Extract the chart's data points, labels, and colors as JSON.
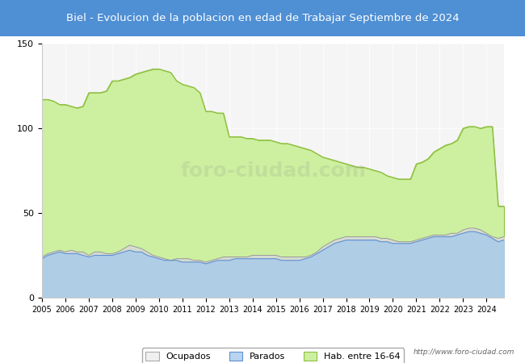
{
  "title": "Biel - Evolucion de la poblacion en edad de Trabajar Septiembre de 2024",
  "title_bg_color": "#4f8fd4",
  "title_text_color": "white",
  "xlim": [
    2005,
    2024.75
  ],
  "ylim": [
    0,
    150
  ],
  "yticks": [
    0,
    50,
    100,
    150
  ],
  "xtick_labels": [
    "2005",
    "2006",
    "2007",
    "2008",
    "2009",
    "2010",
    "2011",
    "2012",
    "2013",
    "2014",
    "2015",
    "2016",
    "2017",
    "2018",
    "2019",
    "2020",
    "2021",
    "2022",
    "2023",
    "2024"
  ],
  "watermark": "foro-ciudad.com",
  "url_text": "http://www.foro-ciudad.com",
  "legend_labels": [
    "Ocupados",
    "Parados",
    "Hab. entre 16-64"
  ],
  "legend_colors": [
    "#f0f0f0",
    "#b8d4f0",
    "#ccf0a0"
  ],
  "hab_color": "#ccf0a0",
  "hab_edge_color": "#90c040",
  "ocupados_color": "#d8d8d8",
  "ocupados_edge_color": "#808080",
  "parados_color": "#a0c8f0",
  "parados_line_color": "#6090d0",
  "hab_data": {
    "years": [
      2005.0,
      2005.25,
      2005.5,
      2005.75,
      2006.0,
      2006.25,
      2006.5,
      2006.75,
      2007.0,
      2007.25,
      2007.5,
      2007.75,
      2008.0,
      2008.25,
      2008.5,
      2008.75,
      2009.0,
      2009.25,
      2009.5,
      2009.75,
      2010.0,
      2010.25,
      2010.5,
      2010.75,
      2011.0,
      2011.25,
      2011.5,
      2011.75,
      2012.0,
      2012.25,
      2012.5,
      2012.75,
      2013.0,
      2013.25,
      2013.5,
      2013.75,
      2014.0,
      2014.25,
      2014.5,
      2014.75,
      2015.0,
      2015.25,
      2015.5,
      2015.75,
      2016.0,
      2016.25,
      2016.5,
      2016.75,
      2017.0,
      2017.25,
      2017.5,
      2017.75,
      2018.0,
      2018.25,
      2018.5,
      2018.75,
      2019.0,
      2019.25,
      2019.5,
      2019.75,
      2020.0,
      2020.25,
      2020.5,
      2020.75,
      2021.0,
      2021.25,
      2021.5,
      2021.75,
      2022.0,
      2022.25,
      2022.5,
      2022.75,
      2023.0,
      2023.25,
      2023.5,
      2023.75,
      2024.0,
      2024.25,
      2024.5,
      2024.75
    ],
    "values": [
      117,
      117,
      116,
      114,
      114,
      113,
      112,
      113,
      121,
      121,
      121,
      122,
      128,
      128,
      129,
      130,
      132,
      133,
      134,
      135,
      135,
      134,
      133,
      128,
      126,
      125,
      124,
      121,
      110,
      110,
      109,
      109,
      95,
      95,
      95,
      94,
      94,
      93,
      93,
      93,
      92,
      91,
      91,
      90,
      89,
      88,
      87,
      85,
      83,
      82,
      81,
      80,
      79,
      78,
      77,
      77,
      76,
      75,
      74,
      72,
      71,
      70,
      70,
      70,
      79,
      80,
      82,
      86,
      88,
      90,
      91,
      93,
      100,
      101,
      101,
      100,
      101,
      101,
      54,
      54
    ]
  },
  "ocupados_data": {
    "years": [
      2005.0,
      2005.25,
      2005.5,
      2005.75,
      2006.0,
      2006.25,
      2006.5,
      2006.75,
      2007.0,
      2007.25,
      2007.5,
      2007.75,
      2008.0,
      2008.25,
      2008.5,
      2008.75,
      2009.0,
      2009.25,
      2009.5,
      2009.75,
      2010.0,
      2010.25,
      2010.5,
      2010.75,
      2011.0,
      2011.25,
      2011.5,
      2011.75,
      2012.0,
      2012.25,
      2012.5,
      2012.75,
      2013.0,
      2013.25,
      2013.5,
      2013.75,
      2014.0,
      2014.25,
      2014.5,
      2014.75,
      2015.0,
      2015.25,
      2015.5,
      2015.75,
      2016.0,
      2016.25,
      2016.5,
      2016.75,
      2017.0,
      2017.25,
      2017.5,
      2017.75,
      2018.0,
      2018.25,
      2018.5,
      2018.75,
      2019.0,
      2019.25,
      2019.5,
      2019.75,
      2020.0,
      2020.25,
      2020.5,
      2020.75,
      2021.0,
      2021.25,
      2021.5,
      2021.75,
      2022.0,
      2022.25,
      2022.5,
      2022.75,
      2023.0,
      2023.25,
      2023.5,
      2023.75,
      2024.0,
      2024.25,
      2024.5,
      2024.75
    ],
    "values": [
      24,
      26,
      27,
      28,
      27,
      28,
      27,
      27,
      25,
      27,
      27,
      26,
      26,
      27,
      29,
      31,
      30,
      29,
      27,
      25,
      24,
      23,
      22,
      23,
      23,
      23,
      22,
      22,
      21,
      22,
      23,
      24,
      24,
      24,
      24,
      24,
      25,
      25,
      25,
      25,
      25,
      24,
      24,
      24,
      24,
      24,
      25,
      27,
      30,
      32,
      34,
      35,
      36,
      36,
      36,
      36,
      36,
      36,
      35,
      35,
      34,
      33,
      33,
      33,
      34,
      35,
      36,
      37,
      37,
      37,
      38,
      38,
      40,
      41,
      41,
      40,
      38,
      36,
      35,
      36
    ]
  },
  "parados_data": {
    "years": [
      2005.0,
      2005.25,
      2005.5,
      2005.75,
      2006.0,
      2006.25,
      2006.5,
      2006.75,
      2007.0,
      2007.25,
      2007.5,
      2007.75,
      2008.0,
      2008.25,
      2008.5,
      2008.75,
      2009.0,
      2009.25,
      2009.5,
      2009.75,
      2010.0,
      2010.25,
      2010.5,
      2010.75,
      2011.0,
      2011.25,
      2011.5,
      2011.75,
      2012.0,
      2012.25,
      2012.5,
      2012.75,
      2013.0,
      2013.25,
      2013.5,
      2013.75,
      2014.0,
      2014.25,
      2014.5,
      2014.75,
      2015.0,
      2015.25,
      2015.5,
      2015.75,
      2016.0,
      2016.25,
      2016.5,
      2016.75,
      2017.0,
      2017.25,
      2017.5,
      2017.75,
      2018.0,
      2018.25,
      2018.5,
      2018.75,
      2019.0,
      2019.25,
      2019.5,
      2019.75,
      2020.0,
      2020.25,
      2020.5,
      2020.75,
      2021.0,
      2021.25,
      2021.5,
      2021.75,
      2022.0,
      2022.25,
      2022.5,
      2022.75,
      2023.0,
      2023.25,
      2023.5,
      2023.75,
      2024.0,
      2024.25,
      2024.5,
      2024.75
    ],
    "values": [
      23,
      25,
      26,
      27,
      26,
      26,
      26,
      25,
      24,
      25,
      25,
      25,
      25,
      26,
      27,
      28,
      27,
      27,
      25,
      24,
      23,
      22,
      22,
      22,
      21,
      21,
      21,
      21,
      20,
      21,
      22,
      22,
      22,
      23,
      23,
      23,
      23,
      23,
      23,
      23,
      23,
      22,
      22,
      22,
      22,
      23,
      24,
      26,
      28,
      30,
      32,
      33,
      34,
      34,
      34,
      34,
      34,
      34,
      33,
      33,
      32,
      32,
      32,
      32,
      33,
      34,
      35,
      36,
      36,
      36,
      36,
      37,
      38,
      39,
      39,
      38,
      37,
      35,
      33,
      34
    ]
  }
}
